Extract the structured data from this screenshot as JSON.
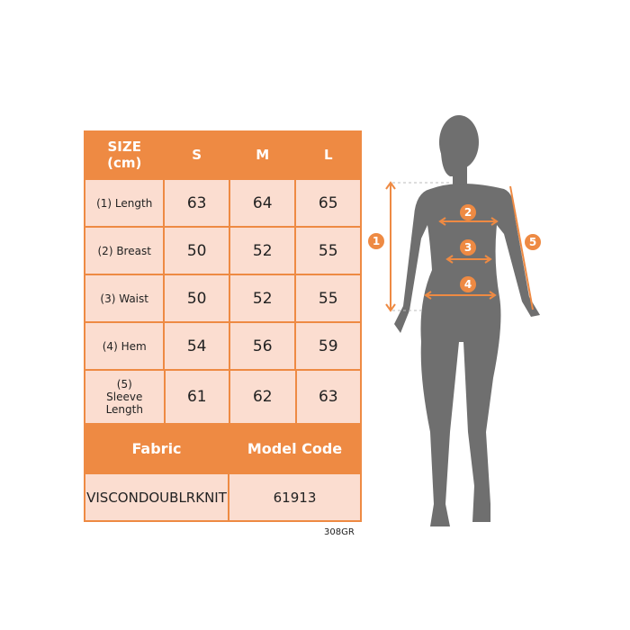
{
  "header": {
    "size_label": "SIZE",
    "unit_label": "(cm)",
    "sizes": [
      "S",
      "M",
      "L"
    ]
  },
  "rows": [
    {
      "label": "(1) Length",
      "values": [
        "63",
        "64",
        "65"
      ]
    },
    {
      "label": "(2) Breast",
      "values": [
        "50",
        "52",
        "55"
      ]
    },
    {
      "label": "(3) Waist",
      "values": [
        "50",
        "52",
        "55"
      ]
    },
    {
      "label": "(4) Hem",
      "values": [
        "54",
        "56",
        "59"
      ]
    },
    {
      "label": "(5) Sleeve Length",
      "values": [
        "61",
        "62",
        "63"
      ]
    }
  ],
  "info": {
    "fabric_label": "Fabric",
    "model_code_label": "Model Code",
    "fabric_line1": "VISCON",
    "fabric_line2": "DOUBLRKNIT",
    "model_code": "61913"
  },
  "product_code": "308GR",
  "figure": {
    "markers": [
      "1",
      "2",
      "3",
      "4",
      "5"
    ]
  },
  "colors": {
    "orange": "#ee8a43",
    "cell": "#fbddd0",
    "silhouette": "#6f6f6f"
  }
}
